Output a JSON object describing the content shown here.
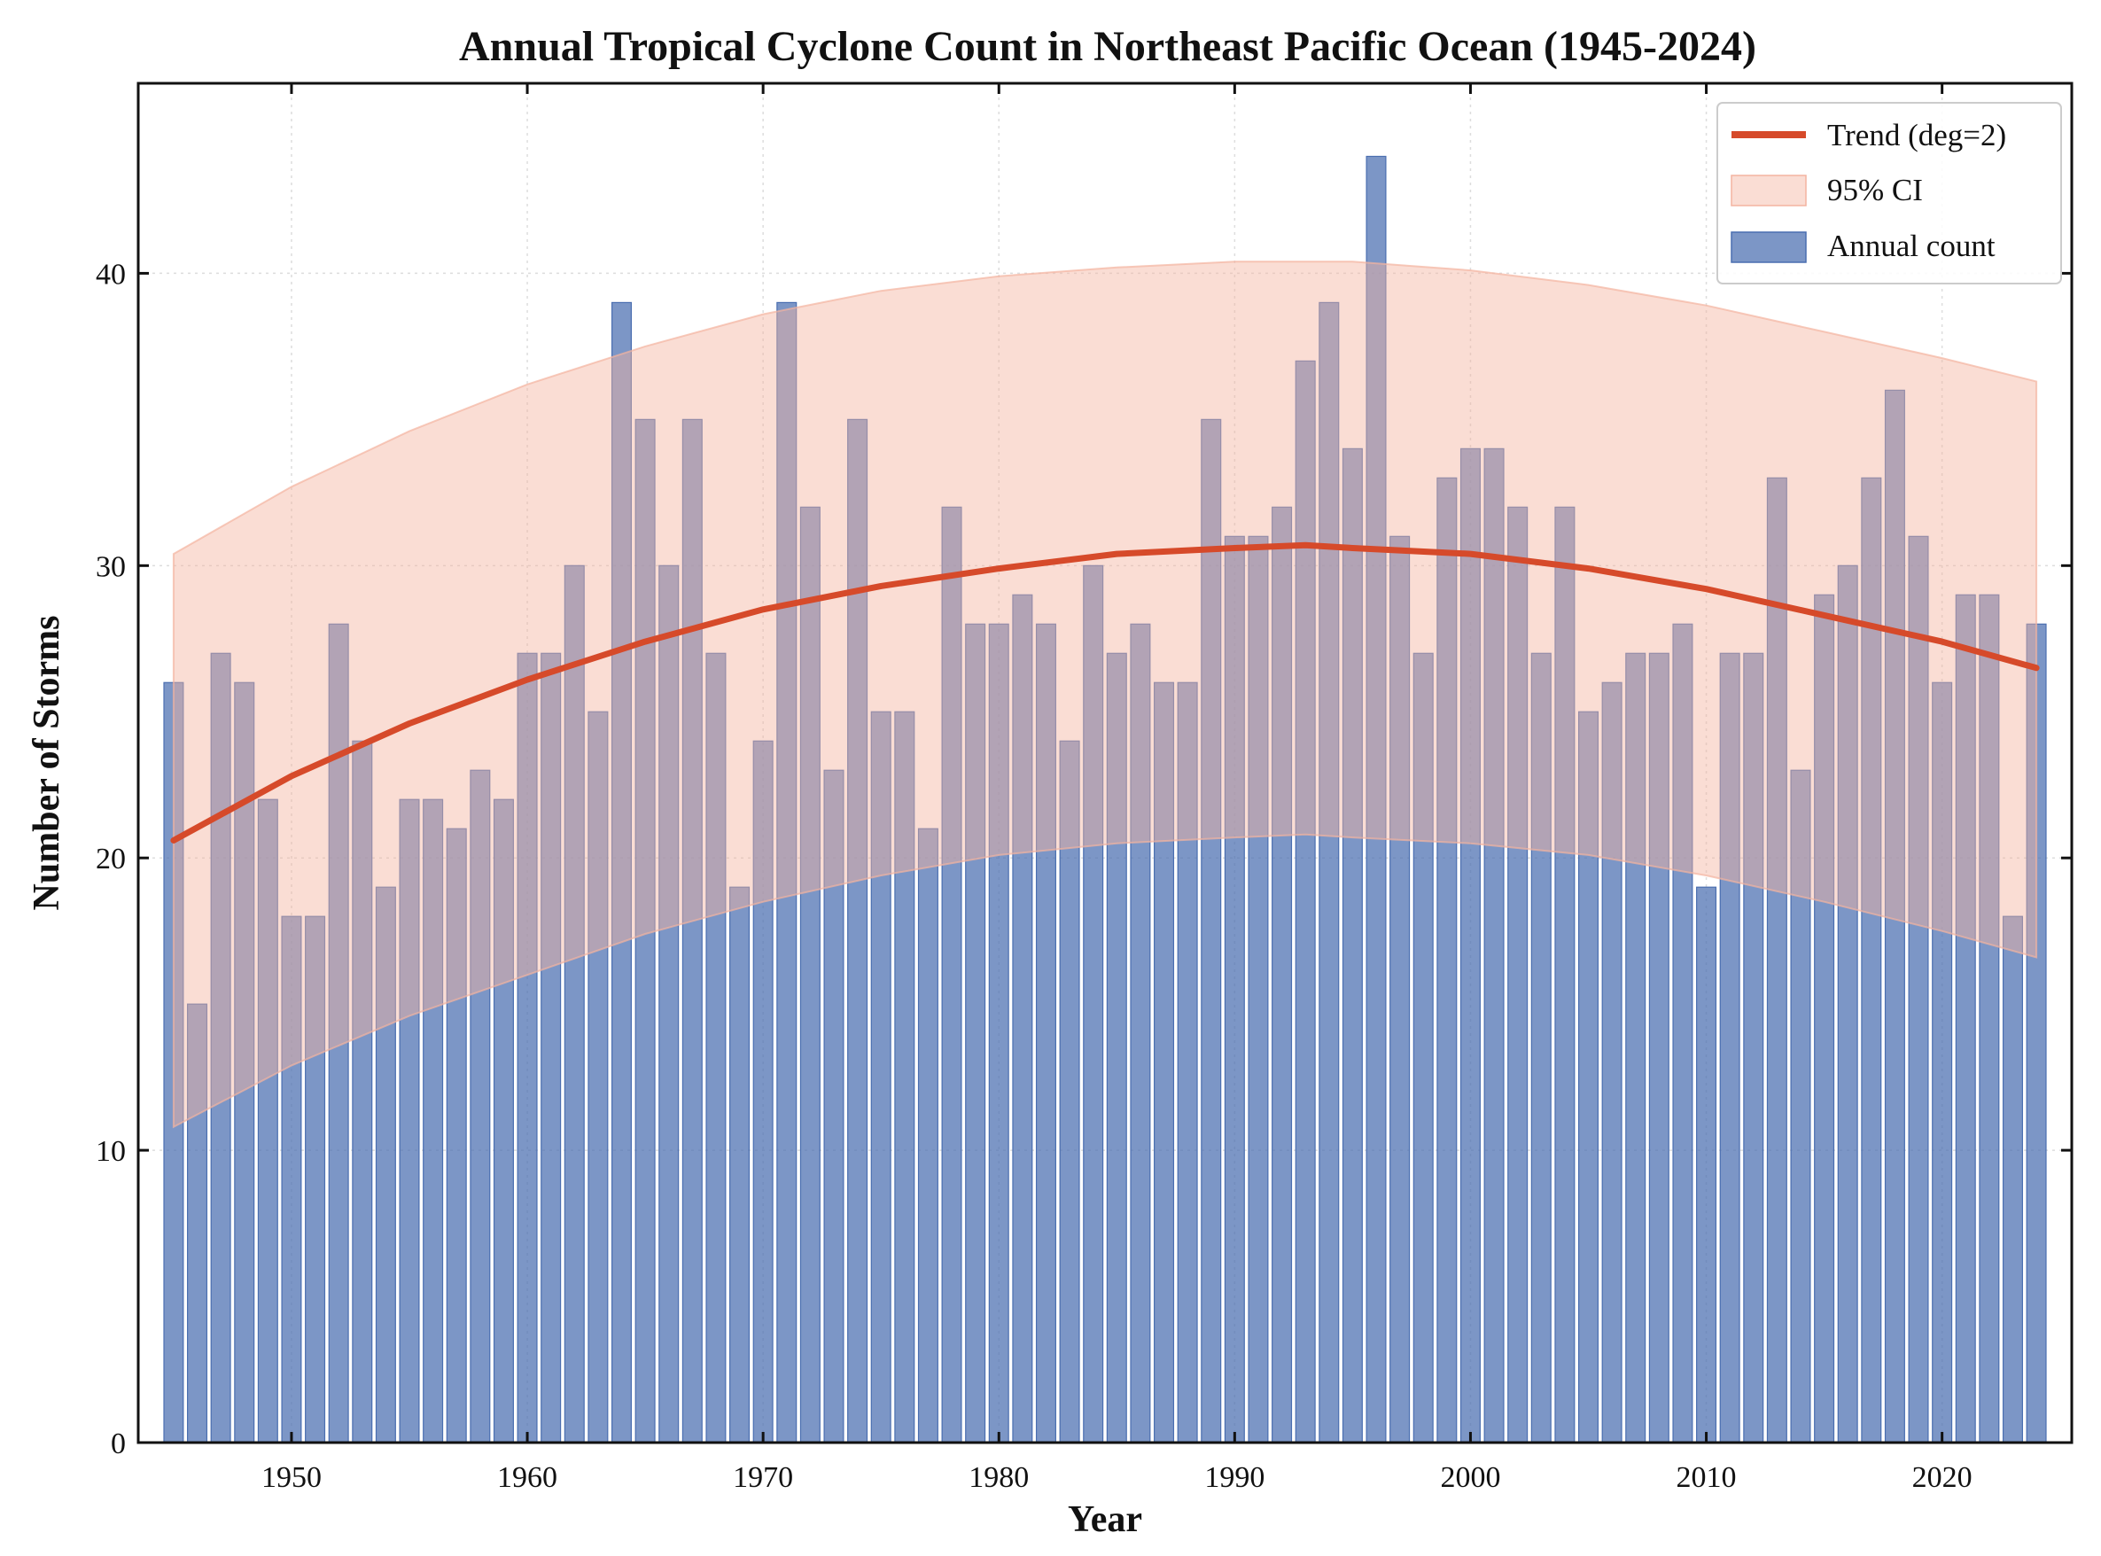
{
  "chart_data": {
    "type": "bar",
    "title": "Annual Tropical Cyclone Count in Northeast Pacific Ocean (1945-2024)",
    "xlabel": "Year",
    "ylabel": "Number of Storms",
    "xlim": [
      1943.5,
      2025.5
    ],
    "ylim": [
      0,
      46.5
    ],
    "x_ticks": [
      1950,
      1960,
      1970,
      1980,
      1990,
      2000,
      2010,
      2020
    ],
    "y_ticks": [
      0,
      10,
      20,
      30,
      40
    ],
    "grid": true,
    "legend_position": "top-right",
    "legend": [
      {
        "label": "Trend (deg=2)",
        "kind": "line"
      },
      {
        "label": "95% CI",
        "kind": "band"
      },
      {
        "label": "Annual count",
        "kind": "bar"
      }
    ],
    "years": [
      1945,
      1946,
      1947,
      1948,
      1949,
      1950,
      1951,
      1952,
      1953,
      1954,
      1955,
      1956,
      1957,
      1958,
      1959,
      1960,
      1961,
      1962,
      1963,
      1964,
      1965,
      1966,
      1967,
      1968,
      1969,
      1970,
      1971,
      1972,
      1973,
      1974,
      1975,
      1976,
      1977,
      1978,
      1979,
      1980,
      1981,
      1982,
      1983,
      1984,
      1985,
      1986,
      1987,
      1988,
      1989,
      1990,
      1991,
      1992,
      1993,
      1994,
      1995,
      1996,
      1997,
      1998,
      1999,
      2000,
      2001,
      2002,
      2003,
      2004,
      2005,
      2006,
      2007,
      2008,
      2009,
      2010,
      2011,
      2012,
      2013,
      2014,
      2015,
      2016,
      2017,
      2018,
      2019,
      2020,
      2021,
      2022,
      2023,
      2024
    ],
    "series": [
      {
        "name": "Annual count",
        "values": [
          26,
          15,
          27,
          26,
          22,
          18,
          18,
          28,
          24,
          19,
          22,
          22,
          21,
          23,
          22,
          27,
          27,
          30,
          25,
          39,
          35,
          30,
          35,
          27,
          19,
          24,
          39,
          32,
          23,
          35,
          25,
          25,
          21,
          32,
          28,
          28,
          29,
          28,
          24,
          30,
          27,
          28,
          26,
          26,
          35,
          31,
          31,
          32,
          37,
          39,
          34,
          44,
          31,
          27,
          33,
          34,
          34,
          32,
          27,
          32,
          25,
          26,
          27,
          27,
          28,
          19,
          27,
          27,
          33,
          23,
          29,
          30,
          33,
          36,
          31,
          26,
          29,
          29,
          18,
          28
        ]
      }
    ],
    "trend": {
      "name": "Trend (deg=2)",
      "x": [
        1945,
        1950,
        1955,
        1960,
        1965,
        1970,
        1975,
        1980,
        1985,
        1990,
        1993,
        1995,
        2000,
        2005,
        2010,
        2015,
        2020,
        2024
      ],
      "y": [
        20.6,
        22.8,
        24.6,
        26.1,
        27.4,
        28.5,
        29.3,
        29.9,
        30.4,
        30.6,
        30.7,
        30.6,
        30.4,
        29.9,
        29.2,
        28.3,
        27.4,
        26.5
      ]
    },
    "ci95": {
      "name": "95% CI",
      "x": [
        1945,
        1950,
        1955,
        1960,
        1965,
        1970,
        1975,
        1980,
        1985,
        1990,
        1993,
        1995,
        2000,
        2005,
        2010,
        2015,
        2020,
        2024
      ],
      "lower": [
        10.8,
        12.9,
        14.6,
        16.0,
        17.4,
        18.5,
        19.4,
        20.1,
        20.5,
        20.7,
        20.8,
        20.7,
        20.5,
        20.1,
        19.4,
        18.5,
        17.5,
        16.6
      ],
      "upper": [
        30.4,
        32.7,
        34.6,
        36.2,
        37.5,
        38.6,
        39.4,
        39.9,
        40.2,
        40.4,
        40.4,
        40.4,
        40.1,
        39.6,
        38.9,
        38.0,
        37.1,
        36.3
      ]
    },
    "colors": {
      "bar": "#4a6eb0",
      "bar_edge": "#4a6eb0",
      "trend": "#d64a2a",
      "ci": "#f4b3a0"
    }
  }
}
